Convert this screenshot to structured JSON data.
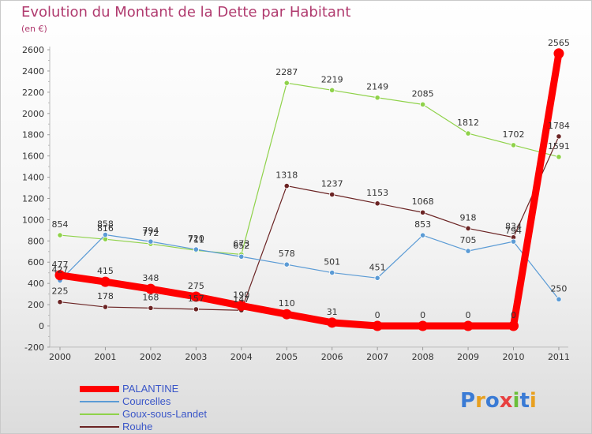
{
  "title": "Evolution du Montant de la Dette par Habitant",
  "subtitle": "(en €)",
  "logo": "Proxiti",
  "chart_data": {
    "type": "line",
    "title": "Evolution du Montant de la Dette par Habitant",
    "subtitle": "(en €)",
    "x": [
      "2000",
      "2001",
      "2002",
      "2003",
      "2004",
      "2005",
      "2006",
      "2007",
      "2008",
      "2009",
      "2010",
      "2011"
    ],
    "ylim": [
      -200,
      2600
    ],
    "yticks": [
      -200,
      0,
      200,
      400,
      600,
      800,
      1000,
      1200,
      1400,
      1600,
      1800,
      2000,
      2200,
      2400,
      2600
    ],
    "grid": false,
    "legend_position": "bottom-left",
    "series": [
      {
        "name": "PALANTINE",
        "color": "#ff0000",
        "values": [
          477,
          415,
          348,
          275,
          190,
          110,
          31,
          0,
          0,
          0,
          0,
          2565
        ]
      },
      {
        "name": "Courcelles",
        "color": "#5b9bd5",
        "values": [
          427,
          858,
          794,
          720,
          652,
          578,
          501,
          451,
          853,
          705,
          794,
          250
        ]
      },
      {
        "name": "Goux-sous-Landet",
        "color": "#8fd24a",
        "values": [
          854,
          816,
          772,
          711,
          673,
          2287,
          2219,
          2149,
          2085,
          1812,
          1702,
          1591
        ]
      },
      {
        "name": "Rouhe",
        "color": "#6b2424",
        "values": [
          225,
          178,
          168,
          157,
          147,
          1318,
          1237,
          1153,
          1068,
          918,
          834,
          1784
        ]
      }
    ]
  }
}
